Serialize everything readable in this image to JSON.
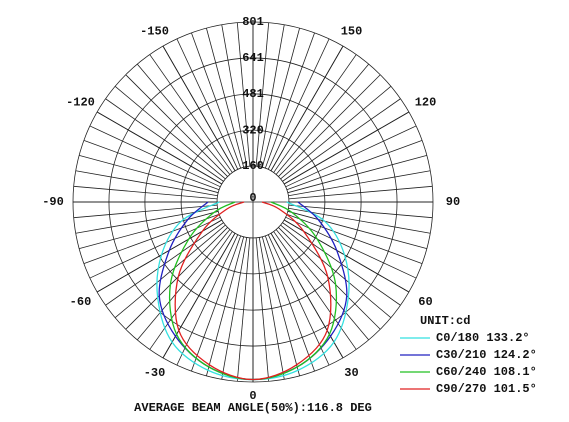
{
  "chart_data": {
    "type": "polar",
    "unit_label": "UNIT:cd",
    "footer": "AVERAGE BEAM ANGLE(50%):116.8 DEG",
    "rlim": [
      0,
      801
    ],
    "rticks": [
      160,
      320,
      481,
      641,
      801
    ],
    "angle_ticks": [
      -150,
      -120,
      -90,
      -60,
      -30,
      0,
      30,
      60,
      90,
      120,
      150
    ],
    "x": [
      -90,
      -75,
      -60,
      -45,
      -30,
      -15,
      0,
      15,
      30,
      45,
      60,
      75,
      90
    ],
    "series": [
      {
        "name": "C0/180 133.2°",
        "color": "#33e0e0",
        "values": [
          150,
          330,
          470,
          600,
          720,
          775,
          790,
          775,
          720,
          600,
          470,
          330,
          150
        ]
      },
      {
        "name": "C30/210 124.2°",
        "color": "#2020c0",
        "values": [
          200,
          300,
          430,
          590,
          690,
          760,
          790,
          760,
          690,
          590,
          430,
          300,
          200
        ]
      },
      {
        "name": "C60/240 108.1°",
        "color": "#20c020",
        "values": [
          80,
          180,
          330,
          520,
          680,
          760,
          790,
          760,
          680,
          520,
          330,
          180,
          80
        ]
      },
      {
        "name": "C90/270 101.5°",
        "color": "#e02020",
        "values": [
          40,
          120,
          260,
          470,
          660,
          750,
          790,
          750,
          660,
          470,
          260,
          120,
          40
        ]
      }
    ]
  }
}
